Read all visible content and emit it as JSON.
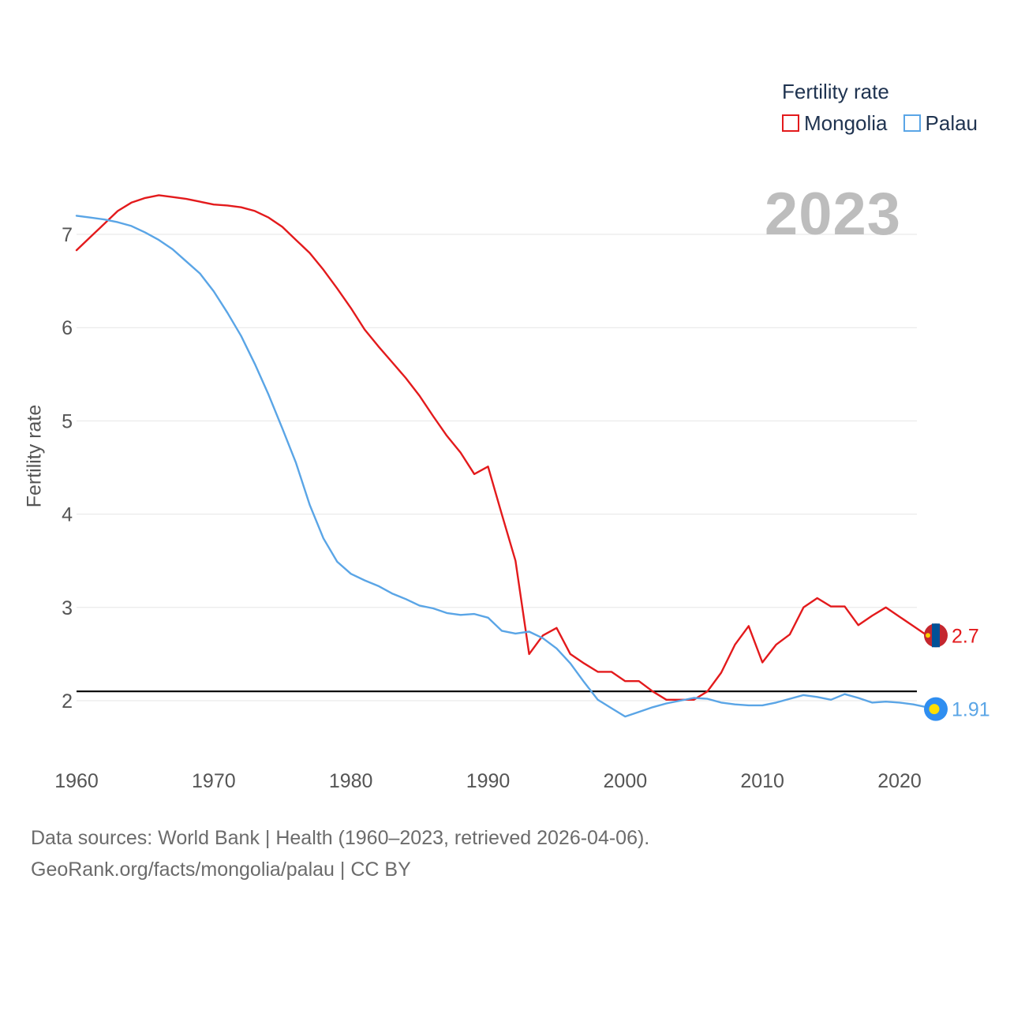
{
  "legend": {
    "title": "Fertility rate",
    "items": [
      {
        "name": "Mongolia",
        "color": "#e31a1c"
      },
      {
        "name": "Palau",
        "color": "#5aa5e6"
      }
    ]
  },
  "year_label": "2023",
  "footer": {
    "line1": "Data sources: World Bank | Health (1960–2023, retrieved 2026-04-06).",
    "line2": "GeoRank.org/facts/mongolia/palau | CC BY"
  },
  "chart_data": {
    "type": "line",
    "title": "",
    "xlabel": "",
    "ylabel": "Fertility rate",
    "xlim": [
      1960,
      2023
    ],
    "ylim": [
      1.5,
      7.6
    ],
    "xticks": [
      1960,
      1970,
      1980,
      1990,
      2000,
      2010,
      2020
    ],
    "yticks": [
      2,
      3,
      4,
      5,
      6,
      7
    ],
    "reference_line": 2.1,
    "x": [
      1960,
      1961,
      1962,
      1963,
      1964,
      1965,
      1966,
      1967,
      1968,
      1969,
      1970,
      1971,
      1972,
      1973,
      1974,
      1975,
      1976,
      1977,
      1978,
      1979,
      1980,
      1981,
      1982,
      1983,
      1984,
      1985,
      1986,
      1987,
      1988,
      1989,
      1990,
      1991,
      1992,
      1993,
      1994,
      1995,
      1996,
      1997,
      1998,
      1999,
      2000,
      2001,
      2002,
      2003,
      2004,
      2005,
      2006,
      2007,
      2008,
      2009,
      2010,
      2011,
      2012,
      2013,
      2014,
      2015,
      2016,
      2017,
      2018,
      2019,
      2020,
      2021,
      2022,
      2023
    ],
    "series": [
      {
        "name": "Mongolia",
        "color": "#e31a1c",
        "end_label": "2.7",
        "values": [
          6.83,
          6.97,
          7.11,
          7.25,
          7.34,
          7.39,
          7.42,
          7.4,
          7.38,
          7.35,
          7.32,
          7.31,
          7.29,
          7.25,
          7.18,
          7.08,
          6.94,
          6.8,
          6.62,
          6.42,
          6.21,
          5.98,
          5.8,
          5.63,
          5.46,
          5.27,
          5.05,
          4.84,
          4.66,
          4.43,
          4.51,
          4.0,
          3.5,
          2.5,
          2.7,
          2.78,
          2.5,
          2.4,
          2.31,
          2.31,
          2.21,
          2.21,
          2.1,
          2.01,
          2.01,
          2.01,
          2.1,
          2.3,
          2.6,
          2.8,
          2.41,
          2.6,
          2.71,
          3.0,
          3.1,
          3.01,
          3.01,
          2.81,
          2.91,
          3.0,
          2.9,
          2.8,
          2.7,
          2.7
        ]
      },
      {
        "name": "Palau",
        "color": "#5aa5e6",
        "end_label": "1.91",
        "values": [
          7.2,
          7.18,
          7.16,
          7.13,
          7.09,
          7.02,
          6.94,
          6.84,
          6.71,
          6.58,
          6.39,
          6.16,
          5.91,
          5.61,
          5.28,
          4.92,
          4.55,
          4.1,
          3.74,
          3.49,
          3.36,
          3.29,
          3.23,
          3.15,
          3.09,
          3.02,
          2.99,
          2.94,
          2.92,
          2.93,
          2.89,
          2.75,
          2.72,
          2.74,
          2.67,
          2.56,
          2.4,
          2.2,
          2.01,
          1.92,
          1.83,
          1.88,
          1.93,
          1.97,
          2.0,
          2.03,
          2.02,
          1.98,
          1.96,
          1.95,
          1.95,
          1.98,
          2.02,
          2.06,
          2.04,
          2.01,
          2.07,
          2.03,
          1.98,
          1.99,
          1.98,
          1.96,
          1.93,
          1.91
        ]
      }
    ]
  }
}
